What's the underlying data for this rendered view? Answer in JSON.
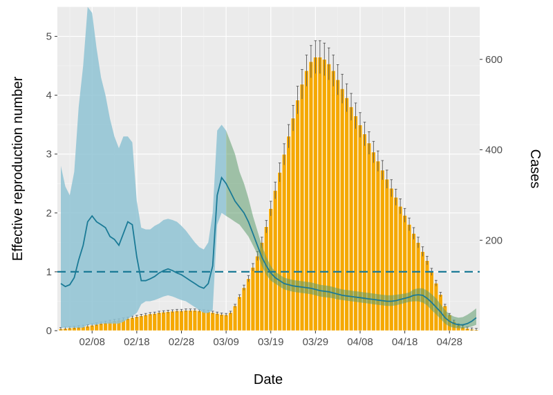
{
  "chart_data": {
    "type": "line",
    "xlabel": "Date",
    "ylabel": "Effective reproduction number",
    "y2label": "Cases",
    "x_ticks": [
      "02/08",
      "02/18",
      "02/28",
      "03/09",
      "03/19",
      "03/29",
      "04/08",
      "04/18",
      "04/28"
    ],
    "y_ticks": [
      "0",
      "1",
      "2",
      "3",
      "4",
      "5"
    ],
    "y2_ticks": [
      "200",
      "400",
      "600"
    ],
    "ylim": [
      0,
      5.5
    ],
    "y2lim": [
      0,
      716
    ],
    "x_start": "02/01",
    "x_end": "05/03",
    "reference_line": 1,
    "grid": true,
    "background": "#ebebeb",
    "colors": {
      "cases_bars": "#f5a800",
      "bar_outline": "#ffffff",
      "ci_band_early": "#8fc3d4",
      "ci_band_late": "#5e9c6e",
      "rt_line": "#1a7a96",
      "reference_line": "#1a7a96",
      "error_bars": "#555555"
    },
    "series": [
      {
        "type": "bar",
        "axis": "right",
        "values": [
          4,
          5,
          6,
          7,
          8,
          9,
          10,
          12,
          14,
          16,
          18,
          20,
          22,
          23,
          25,
          27,
          29,
          31,
          33,
          35,
          37,
          38,
          40,
          41,
          42,
          43,
          44,
          44,
          45,
          45,
          45,
          44,
          43,
          42,
          40,
          38,
          36,
          35,
          40,
          55,
          75,
          95,
          115,
          140,
          165,
          195,
          230,
          270,
          310,
          350,
          390,
          430,
          470,
          510,
          545,
          575,
          595,
          605,
          605,
          600,
          590,
          575,
          555,
          535,
          515,
          495,
          475,
          455,
          435,
          415,
          395,
          375,
          355,
          335,
          315,
          295,
          275,
          255,
          235,
          215,
          195,
          175,
          155,
          130,
          105,
          80,
          55,
          35,
          20,
          12,
          8,
          5,
          3,
          2
        ]
      },
      {
        "type": "line",
        "axis": "left",
        "values": [
          0.8,
          0.75,
          0.78,
          0.9,
          1.2,
          1.45,
          1.85,
          1.95,
          1.85,
          1.8,
          1.75,
          1.6,
          1.55,
          1.45,
          1.65,
          1.85,
          1.8,
          1.25,
          0.85,
          0.85,
          0.88,
          0.92,
          0.98,
          1.02,
          1.05,
          1.02,
          0.98,
          0.95,
          0.9,
          0.85,
          0.8,
          0.75,
          0.72,
          0.8,
          1.1,
          2.3,
          2.6,
          2.5,
          2.35,
          2.2,
          2.1,
          2.0,
          1.85,
          1.65,
          1.45,
          1.25,
          1.1,
          0.98,
          0.9,
          0.85,
          0.8,
          0.78,
          0.76,
          0.75,
          0.74,
          0.73,
          0.72,
          0.7,
          0.68,
          0.67,
          0.66,
          0.64,
          0.62,
          0.6,
          0.59,
          0.58,
          0.57,
          0.56,
          0.55,
          0.54,
          0.53,
          0.52,
          0.51,
          0.5,
          0.5,
          0.51,
          0.53,
          0.55,
          0.57,
          0.6,
          0.61,
          0.6,
          0.55,
          0.48,
          0.4,
          0.32,
          0.22,
          0.16,
          0.12,
          0.1,
          0.1,
          0.12,
          0.16,
          0.22
        ]
      },
      {
        "type": "band",
        "axis": "left",
        "lower": [
          0.05,
          0.05,
          0.05,
          0.05,
          0.05,
          0.05,
          0.1,
          0.1,
          0.1,
          0.12,
          0.12,
          0.12,
          0.12,
          0.12,
          0.15,
          0.2,
          0.25,
          0.3,
          0.45,
          0.5,
          0.5,
          0.52,
          0.55,
          0.58,
          0.6,
          0.58,
          0.55,
          0.52,
          0.5,
          0.45,
          0.4,
          0.35,
          0.3,
          0.3,
          0.35,
          1.8,
          2.0,
          1.95,
          1.9,
          1.85,
          1.8,
          1.7,
          1.6,
          1.45,
          1.3,
          1.1,
          0.95,
          0.85,
          0.8,
          0.75,
          0.7,
          0.68,
          0.66,
          0.65,
          0.64,
          0.63,
          0.62,
          0.6,
          0.58,
          0.57,
          0.56,
          0.55,
          0.53,
          0.52,
          0.51,
          0.5,
          0.49,
          0.48,
          0.47,
          0.46,
          0.45,
          0.44,
          0.43,
          0.42,
          0.42,
          0.43,
          0.45,
          0.47,
          0.49,
          0.5,
          0.5,
          0.48,
          0.43,
          0.35,
          0.28,
          0.2,
          0.12,
          0.07,
          0.05,
          0.04,
          0.04,
          0.05,
          0.07,
          0.1
        ],
        "upper": [
          2.8,
          2.45,
          2.3,
          2.7,
          3.8,
          4.5,
          5.5,
          5.4,
          4.8,
          4.3,
          4.0,
          3.6,
          3.3,
          3.1,
          3.3,
          3.3,
          3.2,
          2.2,
          1.75,
          1.72,
          1.72,
          1.78,
          1.82,
          1.88,
          1.9,
          1.88,
          1.85,
          1.78,
          1.7,
          1.6,
          1.5,
          1.42,
          1.38,
          1.5,
          2.0,
          3.4,
          3.5,
          3.4,
          3.2,
          3.0,
          2.7,
          2.5,
          2.25,
          1.95,
          1.7,
          1.45,
          1.25,
          1.1,
          1.0,
          0.95,
          0.9,
          0.88,
          0.86,
          0.85,
          0.84,
          0.83,
          0.82,
          0.8,
          0.78,
          0.77,
          0.76,
          0.74,
          0.72,
          0.7,
          0.69,
          0.68,
          0.67,
          0.66,
          0.65,
          0.64,
          0.63,
          0.62,
          0.61,
          0.6,
          0.6,
          0.61,
          0.62,
          0.63,
          0.65,
          0.7,
          0.72,
          0.72,
          0.68,
          0.62,
          0.55,
          0.45,
          0.35,
          0.28,
          0.24,
          0.22,
          0.23,
          0.27,
          0.32,
          0.38
        ]
      }
    ],
    "late_band_start_index": 37
  }
}
